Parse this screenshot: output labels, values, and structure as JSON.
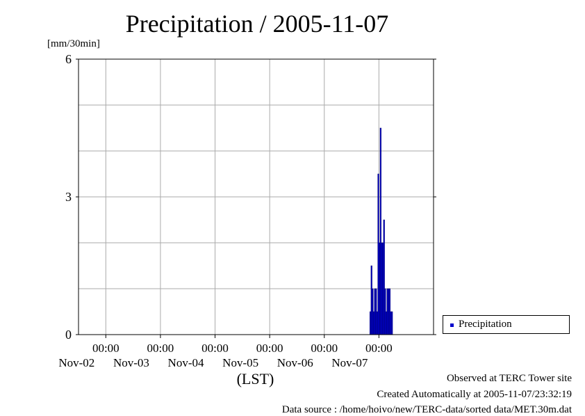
{
  "colors": {
    "series": "#0000cc",
    "grid": "#aaaaaa",
    "axis": "#000000"
  },
  "chart_data": {
    "type": "bar",
    "title": "Precipitation / 2005-11-07",
    "ylabel": "[mm/30min]",
    "xlabel": "(LST)",
    "ylim": [
      0,
      6
    ],
    "y_ticks": [
      "0",
      "3",
      "6"
    ],
    "xlim": [
      "2005-11-01 12:00",
      "2005-11-08 00:00"
    ],
    "x_ticks": [
      {
        "time": "2005-11-02 00:00",
        "top": "00:00",
        "bottom": "Nov-02"
      },
      {
        "time": "2005-11-03 00:00",
        "top": "00:00",
        "bottom": "Nov-03"
      },
      {
        "time": "2005-11-04 00:00",
        "top": "00:00",
        "bottom": "Nov-04"
      },
      {
        "time": "2005-11-05 00:00",
        "top": "00:00",
        "bottom": "Nov-05"
      },
      {
        "time": "2005-11-06 00:00",
        "top": "00:00",
        "bottom": "Nov-06"
      },
      {
        "time": "2005-11-07 00:00",
        "top": "00:00",
        "bottom": "Nov-07"
      }
    ],
    "grid": true,
    "legend": "right",
    "series": [
      {
        "name": "Precipitation",
        "x": [
          "2005-11-06 20:00",
          "2005-11-06 20:30",
          "2005-11-06 21:00",
          "2005-11-06 21:30",
          "2005-11-06 22:00",
          "2005-11-06 22:30",
          "2005-11-06 23:00",
          "2005-11-06 23:30",
          "2005-11-07 00:00",
          "2005-11-07 00:30",
          "2005-11-07 01:00",
          "2005-11-07 01:30",
          "2005-11-07 02:00",
          "2005-11-07 02:30",
          "2005-11-07 03:00",
          "2005-11-07 03:30",
          "2005-11-07 04:00",
          "2005-11-07 04:30",
          "2005-11-07 05:00",
          "2005-11-07 05:30"
        ],
        "values": [
          0.5,
          1.5,
          1.0,
          0.5,
          1.0,
          1.0,
          0.5,
          3.5,
          2.0,
          4.5,
          2.0,
          2.0,
          2.5,
          1.0,
          0.5,
          1.0,
          1.0,
          1.0,
          0.5,
          0.5
        ]
      }
    ]
  },
  "footer": {
    "line1": "Observed at TERC Tower site",
    "line2": "Created Automatically at 2005-11-07/23:32:19",
    "line3": "Data source : /home/hoivo/new/TERC-data/sorted  data/MET.30m.dat"
  }
}
